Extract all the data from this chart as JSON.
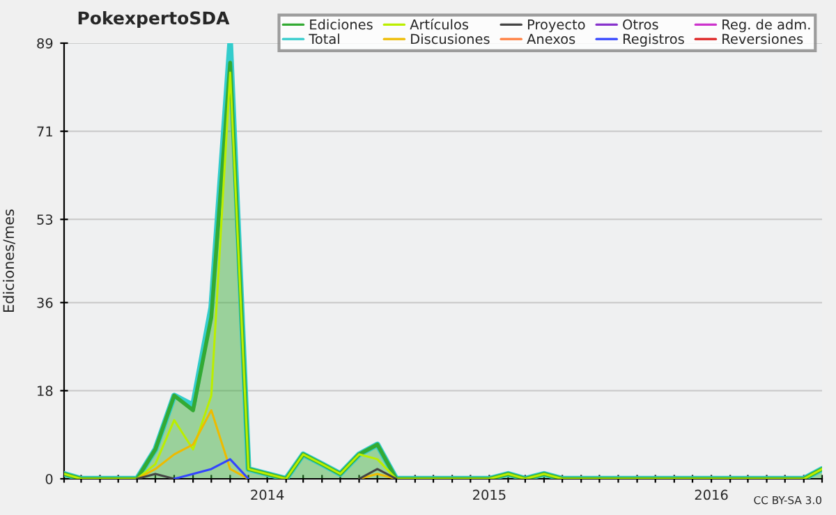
{
  "chart_data": {
    "type": "line",
    "title": "PokexpertoSDA",
    "ylabel": "Ediciones/mes",
    "x": [
      "2013-02",
      "2013-03",
      "2013-04",
      "2013-05",
      "2013-06",
      "2013-07",
      "2013-08",
      "2013-09",
      "2013-10",
      "2013-11",
      "2013-12",
      "2014-01",
      "2014-02",
      "2014-03",
      "2014-04",
      "2014-05",
      "2014-06",
      "2014-07",
      "2014-08",
      "2014-09",
      "2014-10",
      "2014-11",
      "2014-12",
      "2015-01",
      "2015-02",
      "2015-03",
      "2015-04",
      "2015-05",
      "2015-06",
      "2015-07",
      "2015-08",
      "2015-09",
      "2015-10",
      "2015-11",
      "2015-12",
      "2016-01",
      "2016-02",
      "2016-03",
      "2016-04",
      "2016-05",
      "2016-06",
      "2016-07"
    ],
    "series": [
      {
        "name": "Ediciones",
        "type": "area",
        "color": "#33aa33",
        "values": [
          1,
          0,
          0,
          0,
          0,
          6,
          17,
          14,
          33,
          85,
          2,
          1,
          0,
          5,
          3,
          1,
          5,
          7,
          0,
          0,
          0,
          0,
          0,
          0,
          1,
          0,
          1,
          0,
          0,
          0,
          0,
          0,
          0,
          0,
          0,
          0,
          0,
          0,
          0,
          0,
          0,
          2
        ]
      },
      {
        "name": "Total",
        "color": "#33cccc",
        "values": [
          1,
          0,
          0,
          0,
          0,
          6,
          17,
          15,
          35,
          89,
          2,
          1,
          0,
          5,
          3,
          1,
          5,
          7,
          0,
          0,
          0,
          0,
          0,
          0,
          1,
          0,
          1,
          0,
          0,
          0,
          0,
          0,
          0,
          0,
          0,
          0,
          0,
          0,
          0,
          0,
          0,
          2
        ]
      },
      {
        "name": "Artículos",
        "color": "#bbee00",
        "values": [
          1,
          0,
          0,
          0,
          0,
          3,
          12,
          6,
          17,
          83,
          2,
          1,
          0,
          5,
          3,
          1,
          5,
          4,
          0,
          0,
          0,
          0,
          0,
          0,
          1,
          0,
          1,
          0,
          0,
          0,
          0,
          0,
          0,
          0,
          0,
          0,
          0,
          0,
          0,
          0,
          0,
          2
        ]
      },
      {
        "name": "Discusiones",
        "color": "#eebb00",
        "values": [
          null,
          null,
          null,
          null,
          0,
          2,
          5,
          7,
          14,
          2,
          0,
          null,
          null,
          null,
          null,
          null,
          0,
          1,
          0,
          null,
          null,
          null,
          null,
          null,
          null,
          null,
          null,
          null,
          null,
          null,
          null,
          null,
          null,
          null,
          null,
          null,
          null,
          null,
          null,
          null,
          null,
          null
        ]
      },
      {
        "name": "Proyecto",
        "color": "#444444",
        "values": [
          null,
          null,
          null,
          null,
          0,
          1,
          0,
          null,
          null,
          null,
          null,
          null,
          null,
          null,
          null,
          null,
          0,
          2,
          0,
          null,
          null,
          null,
          null,
          null,
          null,
          null,
          null,
          null,
          null,
          null,
          null,
          null,
          null,
          null,
          null,
          null,
          null,
          null,
          null,
          null,
          null,
          null
        ]
      },
      {
        "name": "Anexos",
        "color": "#ff7f3f",
        "values": [
          null,
          null,
          null,
          null,
          null,
          null,
          null,
          null,
          null,
          null,
          null,
          null,
          null,
          null,
          null,
          null,
          null,
          null,
          null,
          null,
          null,
          null,
          null,
          null,
          null,
          null,
          null,
          null,
          null,
          null,
          null,
          null,
          null,
          null,
          null,
          null,
          null,
          null,
          null,
          null,
          null,
          null
        ]
      },
      {
        "name": "Otros",
        "color": "#8833cc",
        "values": [
          null,
          null,
          null,
          null,
          null,
          null,
          null,
          null,
          null,
          null,
          null,
          null,
          null,
          null,
          null,
          null,
          null,
          null,
          null,
          null,
          null,
          null,
          null,
          null,
          null,
          null,
          null,
          null,
          null,
          null,
          null,
          null,
          null,
          null,
          null,
          null,
          null,
          null,
          null,
          null,
          null,
          null
        ]
      },
      {
        "name": "Registros",
        "color": "#3344ff",
        "values": [
          null,
          null,
          null,
          null,
          null,
          null,
          0,
          1,
          2,
          4,
          0,
          null,
          null,
          null,
          null,
          null,
          null,
          null,
          null,
          null,
          null,
          null,
          null,
          null,
          null,
          null,
          null,
          null,
          null,
          null,
          null,
          null,
          null,
          null,
          null,
          null,
          null,
          null,
          null,
          null,
          null,
          null
        ]
      },
      {
        "name": "Reg. de adm.",
        "color": "#cc33cc",
        "values": [
          null,
          null,
          null,
          null,
          null,
          null,
          null,
          null,
          null,
          null,
          null,
          null,
          null,
          null,
          null,
          null,
          null,
          null,
          null,
          null,
          null,
          null,
          null,
          null,
          null,
          null,
          null,
          null,
          null,
          null,
          null,
          null,
          null,
          null,
          null,
          null,
          null,
          null,
          null,
          null,
          null,
          null
        ]
      },
      {
        "name": "Reversiones",
        "color": "#dd2222",
        "values": [
          null,
          null,
          null,
          null,
          null,
          null,
          null,
          null,
          null,
          null,
          null,
          null,
          null,
          null,
          null,
          null,
          null,
          null,
          null,
          null,
          null,
          null,
          null,
          null,
          null,
          null,
          null,
          null,
          null,
          null,
          null,
          null,
          null,
          null,
          null,
          null,
          null,
          null,
          null,
          null,
          null,
          null
        ]
      }
    ],
    "xlim": [
      "2013-02",
      "2016-07"
    ],
    "xticks": [
      {
        "value": "2013-02",
        "label": null
      },
      {
        "value": "2013-03",
        "label": null
      },
      {
        "value": "2013-04",
        "label": null
      },
      {
        "value": "2013-05",
        "label": null
      },
      {
        "value": "2013-06",
        "label": null
      },
      {
        "value": "2013-07",
        "label": null
      },
      {
        "value": "2013-08",
        "label": null
      },
      {
        "value": "2013-09",
        "label": null
      },
      {
        "value": "2013-10",
        "label": null
      },
      {
        "value": "2013-11",
        "label": null
      },
      {
        "value": "2013-12",
        "label": null
      },
      {
        "value": "2014-01",
        "label": "2014"
      },
      {
        "value": "2014-02",
        "label": null
      },
      {
        "value": "2014-03",
        "label": null
      },
      {
        "value": "2014-04",
        "label": null
      },
      {
        "value": "2014-05",
        "label": null
      },
      {
        "value": "2014-06",
        "label": null
      },
      {
        "value": "2014-07",
        "label": null
      },
      {
        "value": "2014-08",
        "label": null
      },
      {
        "value": "2014-09",
        "label": null
      },
      {
        "value": "2014-10",
        "label": null
      },
      {
        "value": "2014-11",
        "label": null
      },
      {
        "value": "2014-12",
        "label": null
      },
      {
        "value": "2015-01",
        "label": "2015"
      },
      {
        "value": "2015-02",
        "label": null
      },
      {
        "value": "2015-03",
        "label": null
      },
      {
        "value": "2015-04",
        "label": null
      },
      {
        "value": "2015-05",
        "label": null
      },
      {
        "value": "2015-06",
        "label": null
      },
      {
        "value": "2015-07",
        "label": null
      },
      {
        "value": "2015-08",
        "label": null
      },
      {
        "value": "2015-09",
        "label": null
      },
      {
        "value": "2015-10",
        "label": null
      },
      {
        "value": "2015-11",
        "label": null
      },
      {
        "value": "2015-12",
        "label": null
      },
      {
        "value": "2016-01",
        "label": "2016"
      },
      {
        "value": "2016-02",
        "label": null
      },
      {
        "value": "2016-03",
        "label": null
      },
      {
        "value": "2016-04",
        "label": null
      },
      {
        "value": "2016-05",
        "label": null
      },
      {
        "value": "2016-06",
        "label": null
      },
      {
        "value": "2016-07",
        "label": null
      }
    ],
    "ylim": [
      0,
      89
    ],
    "yticks": [
      0,
      18,
      36,
      53,
      71,
      89
    ],
    "grid": "y",
    "legend": "top right",
    "annotations": [
      "CC BY-SA 3.0"
    ]
  }
}
